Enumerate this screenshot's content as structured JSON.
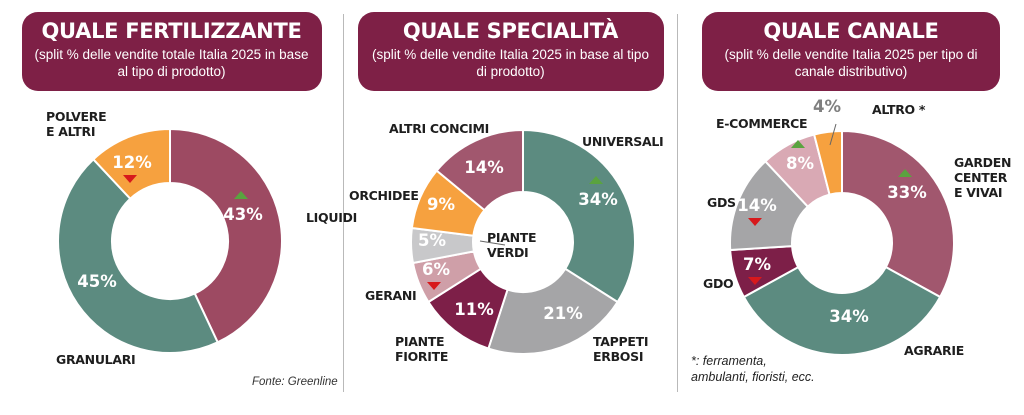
{
  "colors": {
    "header": "#7e2046",
    "up": "#5aa33f",
    "down": "#d7191c"
  },
  "panels": [
    {
      "title": "QUALE FERTILIZZANTE",
      "subtitle": "(split % delle vendite totale Italia 2025 in base al tipo di prodotto)"
    },
    {
      "title": "QUALE SPECIALITÀ",
      "subtitle": "(split % delle vendite Italia 2025 in base al tipo di prodotto)"
    },
    {
      "title": "QUALE CANALE",
      "subtitle": "(split % delle vendite Italia 2025 per tipo di canale distributivo)"
    }
  ],
  "chart_data": [
    {
      "type": "pie",
      "title": "QUALE FERTILIZZANTE",
      "subtitle": "(split % delle vendite totale Italia 2025 in base al tipo di prodotto)",
      "slices": [
        {
          "label": "LIQUIDI",
          "value": 43,
          "display": "43%",
          "trend": "up",
          "color": "#9d4a62"
        },
        {
          "label": "GRANULARI",
          "value": 45,
          "display": "45%",
          "trend": "",
          "color": "#5c8b80"
        },
        {
          "label": "POLVERE\nE ALTRI",
          "value": 12,
          "display": "12%",
          "trend": "down",
          "color": "#f6a13f"
        }
      ]
    },
    {
      "type": "pie",
      "title": "QUALE SPECIALITÀ",
      "subtitle": "(split % delle vendite Italia 2025 in base al tipo di prodotto)",
      "slices": [
        {
          "label": "UNIVERSALI",
          "value": 34,
          "display": "34%",
          "trend": "up",
          "color": "#5c8b80"
        },
        {
          "label": "TAPPETI\nERBOSI",
          "value": 21,
          "display": "21%",
          "trend": "",
          "color": "#a5a5a7"
        },
        {
          "label": "PIANTE\nFIORITE",
          "value": 11,
          "display": "11%",
          "trend": "",
          "color": "#7d1f48"
        },
        {
          "label": "GERANI",
          "value": 6,
          "display": "6%",
          "trend": "down",
          "color": "#cf9fa8"
        },
        {
          "label": "PIANTE\nVERDI",
          "value": 5,
          "display": "5%",
          "trend": "",
          "color": "#c8c8ca"
        },
        {
          "label": "ORCHIDEE",
          "value": 9,
          "display": "9%",
          "trend": "",
          "color": "#f6a13f"
        },
        {
          "label": "ALTRI CONCIMI",
          "value": 14,
          "display": "14%",
          "trend": "",
          "color": "#a1576e"
        }
      ]
    },
    {
      "type": "pie",
      "title": "QUALE CANALE",
      "subtitle": "(split % delle vendite Italia 2025 per tipo di canale distributivo)",
      "slices": [
        {
          "label": "GARDEN\nCENTER\nE VIVAI",
          "value": 33,
          "display": "33%",
          "trend": "up",
          "color": "#a1576e"
        },
        {
          "label": "AGRARIE",
          "value": 34,
          "display": "34%",
          "trend": "",
          "color": "#5c8b80"
        },
        {
          "label": "GDO",
          "value": 7,
          "display": "7%",
          "trend": "down",
          "color": "#7d1f48"
        },
        {
          "label": "GDS",
          "value": 14,
          "display": "14%",
          "trend": "down",
          "color": "#a5a5a7"
        },
        {
          "label": "E-COMMERCE",
          "value": 8,
          "display": "8%",
          "trend": "up",
          "color": "#d9a9b4"
        },
        {
          "label": "ALTRO *",
          "value": 4,
          "display": "4%",
          "trend": "",
          "color": "#f6a13f"
        }
      ]
    }
  ],
  "footnote": "*: ferramenta,\nambulanti, fioristi, ecc.",
  "source": "Fonte: Greenline"
}
